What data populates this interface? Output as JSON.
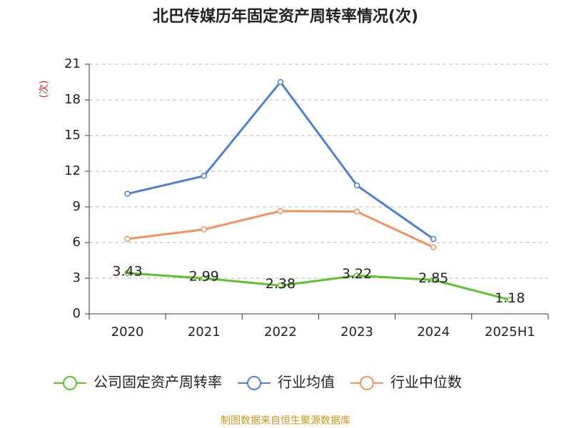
{
  "chart_data": {
    "type": "line",
    "title": "北巴传媒历年固定资产周转率情况(次)",
    "y_label": "(次)",
    "categories": [
      "2020",
      "2021",
      "2022",
      "2023",
      "2024",
      "2025H1"
    ],
    "series": [
      {
        "name": "公司固定资产周转率",
        "color": "#5cc22e",
        "values": [
          3.43,
          2.99,
          2.38,
          3.22,
          2.85,
          1.18
        ],
        "value_labels": [
          "3.43",
          "2.99",
          "2.38",
          "3.22",
          "2.85",
          "1.18"
        ]
      },
      {
        "name": "行业均值",
        "color": "#4e7fd8",
        "values": [
          10.1,
          11.6,
          19.5,
          10.8,
          6.3,
          null
        ]
      },
      {
        "name": "行业中位数",
        "color": "#f4925e",
        "values": [
          6.3,
          7.1,
          8.65,
          8.6,
          5.6,
          null
        ]
      }
    ],
    "ylim": [
      0,
      21
    ],
    "yticks": [
      0,
      3,
      6,
      9,
      12,
      15,
      18,
      21
    ],
    "grid": true,
    "source": "制图数据来自恒生聚源数据库"
  }
}
